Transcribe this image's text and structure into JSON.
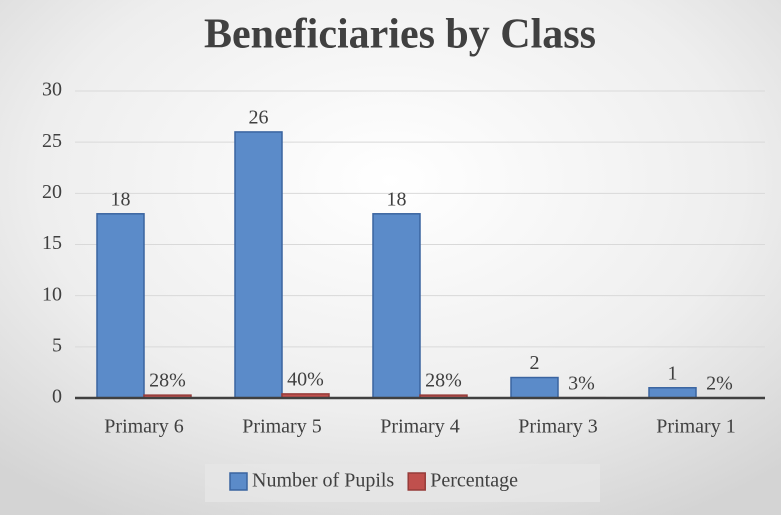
{
  "chart_data": {
    "type": "bar",
    "title": "Beneficiaries by Class",
    "categories": [
      "Primary 6",
      "Primary 5",
      "Primary 4",
      "Primary 3",
      "Primary 1"
    ],
    "series": [
      {
        "name": "Number of Pupils",
        "color": "#5b8bc9",
        "values": [
          18,
          26,
          18,
          2,
          1
        ]
      },
      {
        "name": "Percentage",
        "color": "#c0504d",
        "values": [
          0.28,
          0.4,
          0.28,
          0.03,
          0.02
        ],
        "value_labels": [
          "28%",
          "40%",
          "28%",
          "3%",
          "2%"
        ]
      }
    ],
    "ylim": [
      0,
      30
    ],
    "yticks": [
      0,
      5,
      10,
      15,
      20,
      25,
      30
    ],
    "grid": true,
    "legend": "bottom"
  }
}
